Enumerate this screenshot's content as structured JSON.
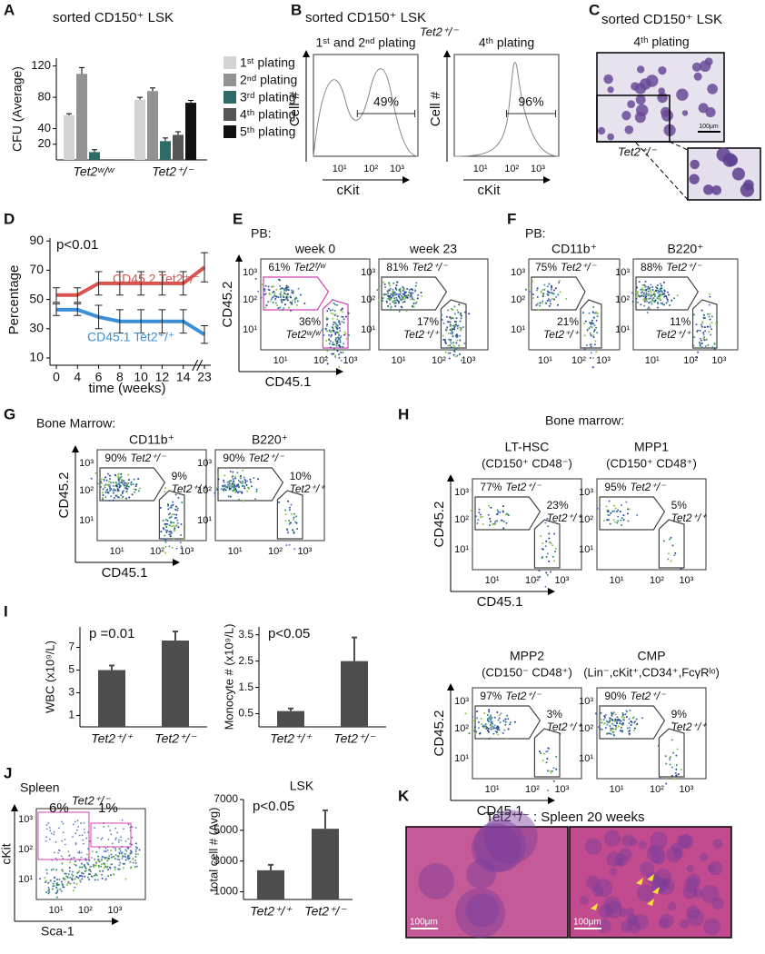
{
  "log_ticks": [
    "10¹",
    "10²",
    "10³"
  ],
  "panel_A": {
    "letter": "A",
    "title": "sorted CD150⁺ LSK",
    "y_label": "CFU (Average)",
    "ylim": [
      0,
      130
    ],
    "yticks": [
      20,
      40,
      80,
      120
    ],
    "groups": [
      "Tet2ʷ/ʷ",
      "Tet2⁺/⁻"
    ],
    "series": [
      {
        "name": "1ˢᵗ plating",
        "color": "#d4d4d4",
        "values": [
          57,
          77
        ],
        "errors": [
          2,
          3
        ]
      },
      {
        "name": "2ⁿᵈ plating",
        "color": "#929292",
        "values": [
          110,
          88
        ],
        "errors": [
          8,
          4
        ]
      },
      {
        "name": "3ʳᵈ plating",
        "color": "#2f6b66",
        "values": [
          10,
          24
        ],
        "errors": [
          3,
          4
        ]
      },
      {
        "name": "4ᵗʰ plating",
        "color": "#555555",
        "values": [
          null,
          32
        ],
        "errors": [
          null,
          4
        ]
      },
      {
        "name": "5ᵗʰ plating",
        "color": "#111111",
        "values": [
          null,
          73
        ],
        "errors": [
          null,
          3
        ]
      }
    ]
  },
  "panel_B": {
    "letter": "B",
    "title": "sorted CD150⁺ LSK",
    "genotype": "Tet2⁺/⁻",
    "y_label": "Cell #",
    "x_label": "cKit",
    "plots": [
      {
        "heading": "1ˢᵗ and 2ⁿᵈ plating",
        "gate": "49%"
      },
      {
        "heading": "4ᵗʰ plating",
        "gate": "96%"
      }
    ]
  },
  "panel_C": {
    "letter": "C",
    "title": "sorted CD150⁺ LSK",
    "heading": "4ᵗʰ plating",
    "genotype": "Tet2⁺/⁻",
    "scale": "100μm"
  },
  "panel_D": {
    "letter": "D",
    "p": "p<0.01",
    "y_label": "Percentage",
    "x_label": "time (weeks)",
    "categories": [
      "0",
      "4",
      "6",
      "8",
      "10",
      "12",
      "14",
      "23"
    ],
    "ylim": [
      5,
      92
    ],
    "yticks": [
      10,
      30,
      50,
      70,
      90
    ],
    "series": [
      {
        "name": "CD45.2 Tet2⁺/⁻",
        "color": "#d9534f",
        "values": [
          53,
          53,
          61,
          61,
          61,
          61,
          61,
          72
        ],
        "errors": [
          5,
          5,
          8,
          8,
          8,
          8,
          8,
          10
        ]
      },
      {
        "name": "CD45.1 Tet2⁺/⁺",
        "color": "#3a8fd6",
        "values": [
          43,
          43,
          38,
          35,
          35,
          35,
          35,
          26
        ],
        "errors": [
          4,
          4,
          8,
          8,
          8,
          8,
          8,
          6
        ]
      }
    ]
  },
  "panel_E": {
    "letter": "E",
    "prefix": "PB:",
    "y_label": "CD45.2",
    "x_label": "CD45.1",
    "plots": [
      {
        "heading": "week 0",
        "upper": {
          "percent": "61%",
          "genotype": "Tet2ᶠ/ʷ"
        },
        "lower": {
          "percent": "36%",
          "genotype": "Tet2ʷ/ʷ"
        }
      },
      {
        "heading": "week 23",
        "upper": {
          "percent": "81%",
          "genotype": "Tet2⁺/⁻"
        },
        "lower": {
          "percent": "17%",
          "genotype": "Tet2⁺/⁺"
        }
      }
    ]
  },
  "panel_F": {
    "letter": "F",
    "prefix": "PB:",
    "plots": [
      {
        "heading": "CD11b⁺",
        "upper": {
          "percent": "75%",
          "genotype": "Tet2⁺/⁻"
        },
        "lower": {
          "percent": "21%",
          "genotype": "Tet2⁺/⁺"
        }
      },
      {
        "heading": "B220⁺",
        "upper": {
          "percent": "88%",
          "genotype": "Tet2⁺/⁻"
        },
        "lower": {
          "percent": "11%",
          "genotype": "Tet2⁺/⁺"
        }
      }
    ]
  },
  "panel_G": {
    "letter": "G",
    "prefix": "Bone Marrow:",
    "y_label": "CD45.2",
    "x_label": "CD45.1",
    "plots": [
      {
        "heading": "CD11b⁺",
        "upper": {
          "percent": "90%",
          "genotype": "Tet2⁺/⁻"
        },
        "lower": {
          "percent": "9%",
          "genotype": "Tet2⁺/⁺"
        }
      },
      {
        "heading": "B220⁺",
        "upper": {
          "percent": "90%",
          "genotype": "Tet2⁺/⁻"
        },
        "lower": {
          "percent": "10%",
          "genotype": "Tet2⁺/⁺"
        }
      }
    ]
  },
  "panel_H": {
    "letter": "H",
    "prefix": "Bone marrow:",
    "y_label": "CD45.2",
    "x_label": "CD45.1",
    "plots": [
      {
        "heading": "LT-HSC",
        "subheading": "(CD150⁺ CD48⁻)",
        "upper": {
          "percent": "77%",
          "genotype": "Tet2⁺/⁻"
        },
        "lower": {
          "percent": "23%",
          "genotype": "Tet2⁺/⁺"
        }
      },
      {
        "heading": "MPP1",
        "subheading": "(CD150⁺ CD48⁺)",
        "upper": {
          "percent": "95%",
          "genotype": "Tet2⁺/⁻"
        },
        "lower": {
          "percent": "5%",
          "genotype": "Tet2⁺/⁺"
        }
      },
      {
        "heading": "MPP2",
        "subheading": "(CD150⁻ CD48⁺)",
        "upper": {
          "percent": "97%",
          "genotype": "Tet2⁺/⁻"
        },
        "lower": {
          "percent": "3%",
          "genotype": "Tet2⁺/⁺"
        }
      },
      {
        "heading": "CMP",
        "subheading": "(Lin⁻,cKit⁺,CD34⁺,FcγRˡᵒ)",
        "upper": {
          "percent": "90%",
          "genotype": "Tet2⁺/⁻"
        },
        "lower": {
          "percent": "9%",
          "genotype": "Tet2⁺/⁺"
        }
      }
    ]
  },
  "panel_I": {
    "letter": "I",
    "color": "#4d4d4d",
    "categories": [
      "Tet2⁺/⁺",
      "Tet2⁺/⁻"
    ],
    "charts": [
      {
        "p": "p =0.01",
        "y_label": "WBC (x10⁹/L)",
        "values": [
          5,
          7.6
        ],
        "errors": [
          0.4,
          0.8
        ],
        "ylim": [
          0,
          8.8
        ],
        "yticks": [
          1,
          3,
          5,
          7
        ]
      },
      {
        "p": "p<0.05",
        "y_label": "Monocyte # (x10⁹/L)",
        "values": [
          0.6,
          2.5
        ],
        "errors": [
          0.1,
          0.9
        ],
        "ylim": [
          0,
          3.8
        ],
        "yticks": [
          0.5,
          1.5,
          2.5,
          3.5
        ]
      }
    ]
  },
  "panel_J": {
    "letter": "J",
    "prefix": "Spleen",
    "flow": {
      "genotype": "Tet2⁺/⁻",
      "gates": [
        "6%",
        "1%"
      ],
      "y_label": "cKit",
      "x_label": "Sca-1"
    },
    "chart": {
      "title": "LSK",
      "p": "p<0.05",
      "y_label": "total cell # (Avg)",
      "values": [
        2400,
        5100
      ],
      "errors": [
        350,
        1200
      ],
      "ylim": [
        500,
        7000
      ],
      "yticks": [
        1000,
        3000,
        5000,
        7000
      ]
    }
  },
  "panel_K": {
    "letter": "K",
    "title": "Tet2⁺/⁻ : Spleen 20 weeks",
    "scales": [
      "100μm",
      "100μm"
    ]
  }
}
